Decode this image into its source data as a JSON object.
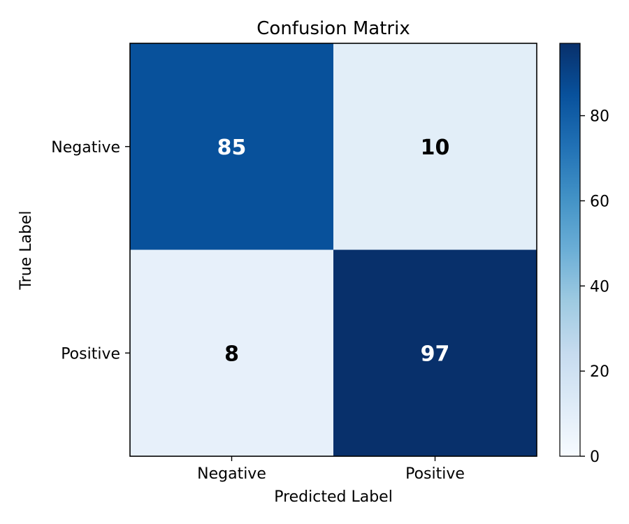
{
  "chart_data": {
    "type": "heatmap",
    "title": "Confusion Matrix",
    "xlabel": "Predicted Label",
    "ylabel": "True Label",
    "x_categories": [
      "Negative",
      "Positive"
    ],
    "y_categories": [
      "Negative",
      "Positive"
    ],
    "values": [
      [
        85,
        10
      ],
      [
        8,
        97
      ]
    ],
    "colormap": "Blues",
    "colorbar": {
      "range": [
        0,
        97
      ],
      "ticks": [
        0,
        20,
        40,
        60,
        80
      ]
    },
    "colors": {
      "low": "#f7fbff",
      "high": "#08306b",
      "text_dark": "#000000",
      "text_light": "#ffffff"
    }
  }
}
